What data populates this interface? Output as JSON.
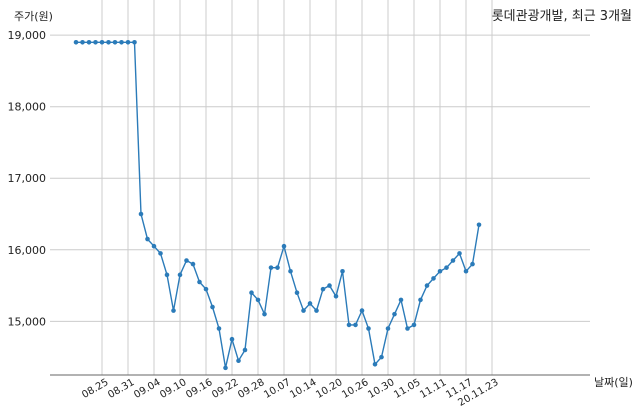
{
  "chart_data": {
    "type": "line",
    "title": "롯데관광개발, 최근 3개월",
    "ylabel": "주가(원)",
    "xlabel": "날짜(일)",
    "ylim": [
      14250,
      19100
    ],
    "yticks": [
      15000,
      16000,
      17000,
      18000,
      19000
    ],
    "ytick_labels": [
      "15,000",
      "16,000",
      "17,000",
      "18,000",
      "19,000"
    ],
    "xtick_labels": [
      "08.25",
      "08.31",
      "09.04",
      "09.10",
      "09.16",
      "09.22",
      "09.28",
      "10.07",
      "10.14",
      "10.20",
      "10.26",
      "10.30",
      "11.05",
      "11.11",
      "11.17",
      "20.11.23"
    ],
    "xtick_index": [
      4,
      8,
      12,
      16,
      20,
      24,
      28,
      32,
      36,
      40,
      44,
      48,
      52,
      56,
      60,
      64
    ],
    "grid": true,
    "color": "#2b7bb9",
    "series": [
      {
        "values": [
          18900,
          18900,
          18900,
          18900,
          18900,
          18900,
          18900,
          18900,
          18900,
          18900,
          16500,
          16150,
          16050,
          15950,
          15650,
          15150,
          15650,
          15850,
          15800,
          15550,
          15450,
          15200,
          14900,
          14350,
          14750,
          14450,
          14600,
          15400,
          15300,
          15100,
          15750,
          15750,
          16050,
          15700,
          15400,
          15150,
          15250,
          15150,
          15450,
          15500,
          15350,
          15700,
          14950,
          14950,
          15150,
          14900,
          14400,
          14500,
          14900,
          15100,
          15300,
          14900,
          14950,
          15300,
          15500,
          15600,
          15700,
          15750,
          15850,
          15950,
          15700,
          15800,
          16350
        ]
      }
    ]
  }
}
